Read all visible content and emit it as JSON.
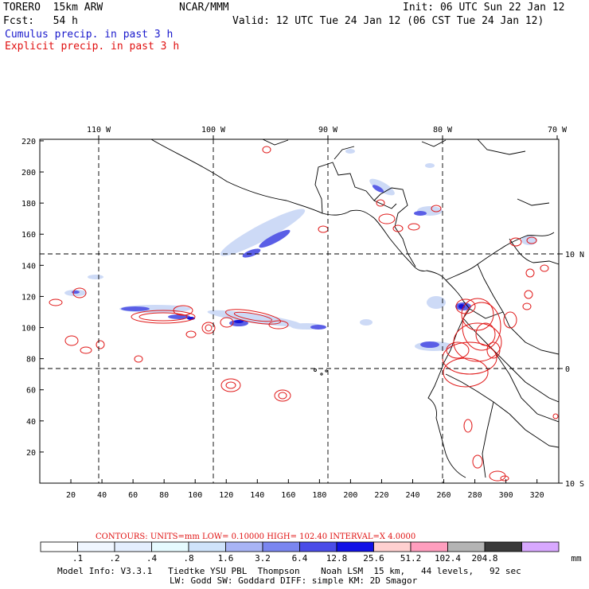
{
  "header": {
    "model": "TORERO  15km ARW",
    "org": "NCAR/MMM",
    "init": "Init: 06 UTC Sun 22 Jan 12",
    "fcst": "Fcst:   54 h",
    "valid": "Valid: 12 UTC Tue 24 Jan 12 (06 CST Tue 24 Jan 12)",
    "line_blue": "Cumulus precip. in past 3 h",
    "line_red": "Explicit precip. in past 3 h"
  },
  "map": {
    "top_lon_labels": [
      "110 W",
      "100 W",
      "90 W",
      "80 W",
      "70 W"
    ],
    "right_lat_labels": [
      "10 N",
      "0",
      "10 S"
    ],
    "left_axis_ticks": [
      "20",
      "40",
      "60",
      "80",
      "100",
      "120",
      "140",
      "160",
      "180",
      "200",
      "220"
    ],
    "bottom_axis_ticks": [
      "20",
      "40",
      "60",
      "80",
      "100",
      "120",
      "140",
      "160",
      "180",
      "200",
      "220",
      "240",
      "260",
      "280",
      "300",
      "320"
    ]
  },
  "contour_info": {
    "text": "CONTOURS:  UNITS=mm  LOW= 0.10000        HIGH=  102.40        INTERVAL=X  4.0000"
  },
  "colorbar": {
    "colors": [
      "#ffffff",
      "#f0f6ff",
      "#e4eefe",
      "#e6fbff",
      "#cfe3fb",
      "#a8b4f5",
      "#7a86f0",
      "#4a4ce8",
      "#1010e6",
      "#ffd0d0",
      "#ff9ebe",
      "#b4b4b4",
      "#3a3a3a",
      "#d8a8ff"
    ],
    "labels": [
      ".1",
      ".2",
      ".4",
      ".8",
      "1.6",
      "3.2",
      "6.4",
      "12.8",
      "25.6",
      "51.2",
      "102.4",
      "204.8"
    ],
    "unit": "mm"
  },
  "footer": {
    "line1": "Model Info: V3.3.1   Tiedtke YSU PBL  Thompson    Noah LSM  15 km,   44 levels,   92 sec",
    "line2": "LW: Godd SW: Goddard DIFF: simple KM: 2D Smagor"
  }
}
